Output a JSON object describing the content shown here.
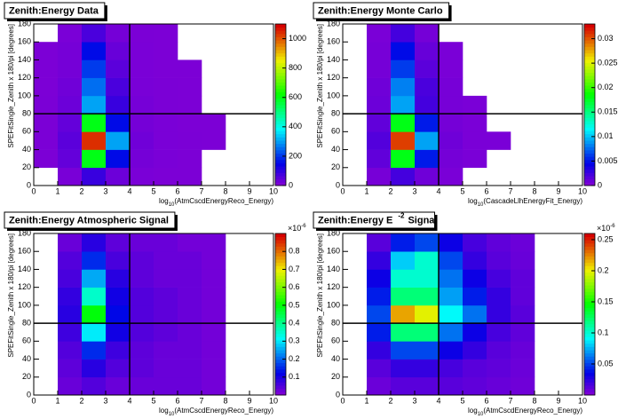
{
  "chart_data": [
    {
      "type": "heatmap",
      "title": "Zenith:Energy Data",
      "x_label": "log",
      "x_label_sub": "10",
      "x_label_end": "(AtmCscdEnergyReco_Energy)",
      "y_label": "SPEFitSingle_Zenith x 180/pi [degrees]",
      "xlim": [
        0,
        10
      ],
      "xticks": [
        0,
        1,
        2,
        3,
        4,
        5,
        6,
        7,
        8,
        9,
        10
      ],
      "ylim": [
        0,
        180
      ],
      "yticks": [
        0,
        20,
        40,
        60,
        80,
        100,
        120,
        140,
        160,
        180
      ],
      "zlim": [
        0,
        1100
      ],
      "zticks": [
        0,
        200,
        400,
        600,
        800,
        1000
      ],
      "cut_x": 4,
      "cut_y": 80,
      "x_bins": [
        0,
        1,
        2,
        3,
        4,
        5,
        6,
        7,
        8,
        9,
        10
      ],
      "y_bins": [
        0,
        20,
        40,
        60,
        80,
        100,
        120,
        140,
        160,
        180
      ],
      "z": [
        [
          0,
          5,
          80,
          20,
          3,
          1,
          1,
          0,
          0,
          0
        ],
        [
          1,
          30,
          600,
          150,
          10,
          3,
          1,
          0,
          0,
          0
        ],
        [
          2,
          40,
          1050,
          300,
          15,
          4,
          2,
          1,
          0,
          0
        ],
        [
          2,
          30,
          600,
          150,
          10,
          3,
          1,
          1,
          0,
          0
        ],
        [
          2,
          20,
          300,
          80,
          8,
          2,
          1,
          0,
          0,
          0
        ],
        [
          1,
          15,
          250,
          60,
          5,
          2,
          1,
          0,
          0,
          0
        ],
        [
          1,
          10,
          200,
          40,
          4,
          1,
          1,
          0,
          0,
          0
        ],
        [
          1,
          8,
          150,
          25,
          3,
          1,
          0,
          0,
          0,
          0
        ],
        [
          0,
          3,
          60,
          10,
          2,
          1,
          0,
          0,
          0,
          0
        ]
      ]
    },
    {
      "type": "heatmap",
      "title": "Zenith:Energy Monte Carlo",
      "x_label": "log",
      "x_label_sub": "10",
      "x_label_end": "(CascadeLlhEnergyFit_Energy)",
      "y_label": "SPEFitSingle_Zenith x 180/pi [degrees]",
      "xlim": [
        0,
        10
      ],
      "xticks": [
        0,
        1,
        2,
        3,
        4,
        5,
        6,
        7,
        8,
        9,
        10
      ],
      "ylim": [
        0,
        180
      ],
      "yticks": [
        0,
        20,
        40,
        60,
        80,
        100,
        120,
        140,
        160,
        180
      ],
      "zlim": [
        0,
        0.033
      ],
      "zticks": [
        0,
        0.005,
        0.01,
        0.015,
        0.02,
        0.025,
        0.03
      ],
      "cut_x": 4,
      "cut_y": 80,
      "x_bins": [
        0,
        1,
        2,
        3,
        4,
        5,
        6,
        7,
        8,
        9,
        10
      ],
      "y_bins": [
        0,
        20,
        40,
        60,
        80,
        100,
        120,
        140,
        160,
        180
      ],
      "z": [
        [
          0,
          0.0002,
          0.002,
          0.0005,
          0.0001,
          0,
          0,
          0,
          0,
          0
        ],
        [
          0,
          0.001,
          0.018,
          0.005,
          0.0003,
          0.0001,
          0,
          0,
          0,
          0
        ],
        [
          0,
          0.0015,
          0.031,
          0.009,
          0.0005,
          0.0001,
          0.0001,
          0,
          0,
          0
        ],
        [
          0,
          0.001,
          0.018,
          0.005,
          0.0003,
          0.0001,
          0,
          0,
          0,
          0
        ],
        [
          0,
          0.0006,
          0.009,
          0.002,
          0.0002,
          0.0001,
          0,
          0,
          0,
          0
        ],
        [
          0,
          0.0005,
          0.008,
          0.0018,
          0.0002,
          0,
          0,
          0,
          0,
          0
        ],
        [
          0,
          0.0003,
          0.006,
          0.0012,
          0.0001,
          0,
          0,
          0,
          0,
          0
        ],
        [
          0,
          0.0002,
          0.0045,
          0.0008,
          0.0001,
          0,
          0,
          0,
          0,
          0
        ],
        [
          0,
          0.0001,
          0.002,
          0.0003,
          0,
          0,
          0,
          0,
          0,
          0
        ]
      ]
    },
    {
      "type": "heatmap",
      "title": "Zenith:Energy Atmospheric Signal",
      "x_label": "log",
      "x_label_sub": "10",
      "x_label_end": "(AtmCscdEnergyReco_Energy)",
      "y_label": "SPEFitSingle_Zenith x 180/pi [degrees]",
      "xlim": [
        0,
        10
      ],
      "xticks": [
        0,
        1,
        2,
        3,
        4,
        5,
        6,
        7,
        8,
        9,
        10
      ],
      "ylim": [
        0,
        180
      ],
      "yticks": [
        0,
        20,
        40,
        60,
        80,
        100,
        120,
        140,
        160,
        180
      ],
      "zlim": [
        0,
        0.9
      ],
      "zticks": [
        0.1,
        0.2,
        0.3,
        0.4,
        0.5,
        0.6,
        0.7,
        0.8
      ],
      "z_multiplier": "×10",
      "z_multiplier_sup": "-6",
      "cut_x": 4,
      "cut_y": 80,
      "x_bins": [
        0,
        1,
        2,
        3,
        4,
        5,
        6,
        7,
        8,
        9,
        10
      ],
      "y_bins": [
        0,
        20,
        40,
        60,
        80,
        100,
        120,
        140,
        160,
        180
      ],
      "z": [
        [
          0,
          0.02,
          0.04,
          0.02,
          0.02,
          0.02,
          0.02,
          0.01,
          0,
          0
        ],
        [
          0,
          0.03,
          0.08,
          0.04,
          0.03,
          0.02,
          0.02,
          0.01,
          0,
          0
        ],
        [
          0,
          0.04,
          0.15,
          0.06,
          0.03,
          0.02,
          0.02,
          0.01,
          0,
          0
        ],
        [
          0,
          0.06,
          0.3,
          0.1,
          0.04,
          0.03,
          0.02,
          0.01,
          0,
          0
        ],
        [
          0,
          0.08,
          0.5,
          0.12,
          0.04,
          0.03,
          0.02,
          0.01,
          0,
          0
        ],
        [
          0,
          0.07,
          0.35,
          0.1,
          0.04,
          0.03,
          0.02,
          0.01,
          0,
          0
        ],
        [
          0,
          0.05,
          0.25,
          0.08,
          0.03,
          0.02,
          0.02,
          0.01,
          0,
          0
        ],
        [
          0,
          0.04,
          0.15,
          0.05,
          0.03,
          0.02,
          0.02,
          0.01,
          0,
          0
        ],
        [
          0,
          0.02,
          0.08,
          0.03,
          0.02,
          0.02,
          0.01,
          0.01,
          0,
          0
        ]
      ]
    },
    {
      "type": "heatmap",
      "title": "Zenith:Energy E",
      "title_sup": "-2",
      "title_end": "Signal",
      "x_label": "log",
      "x_label_sub": "10",
      "x_label_end": "(AtmCscdEnergyReco_Energy)",
      "y_label": "SPEFitSingle_Zenith x 180/pi [degrees]",
      "xlim": [
        0,
        10
      ],
      "xticks": [
        0,
        1,
        2,
        3,
        4,
        5,
        6,
        7,
        8,
        9,
        10
      ],
      "ylim": [
        0,
        180
      ],
      "yticks": [
        0,
        20,
        40,
        60,
        80,
        100,
        120,
        140,
        160,
        180
      ],
      "zlim": [
        0,
        0.26
      ],
      "zticks": [
        0.05,
        0.1,
        0.15,
        0.2,
        0.25
      ],
      "z_multiplier": "×10",
      "z_multiplier_sup": "-6",
      "cut_x": 4,
      "cut_y": 80,
      "x_bins": [
        0,
        1,
        2,
        3,
        4,
        5,
        6,
        7,
        8,
        9,
        10
      ],
      "y_bins": [
        0,
        20,
        40,
        60,
        80,
        100,
        120,
        140,
        160,
        180
      ],
      "z": [
        [
          0,
          0.005,
          0.01,
          0.01,
          0.01,
          0.008,
          0.006,
          0.004,
          0,
          0
        ],
        [
          0,
          0.01,
          0.02,
          0.02,
          0.015,
          0.01,
          0.008,
          0.005,
          0,
          0
        ],
        [
          0,
          0.02,
          0.05,
          0.05,
          0.03,
          0.02,
          0.01,
          0.006,
          0,
          0
        ],
        [
          0,
          0.04,
          0.12,
          0.12,
          0.06,
          0.03,
          0.015,
          0.008,
          0,
          0
        ],
        [
          0,
          0.05,
          0.22,
          0.2,
          0.09,
          0.06,
          0.02,
          0.01,
          0,
          0
        ],
        [
          0,
          0.04,
          0.12,
          0.12,
          0.07,
          0.04,
          0.02,
          0.008,
          0,
          0
        ],
        [
          0,
          0.03,
          0.1,
          0.1,
          0.06,
          0.03,
          0.015,
          0.008,
          0,
          0
        ],
        [
          0,
          0.02,
          0.08,
          0.1,
          0.05,
          0.02,
          0.01,
          0.006,
          0,
          0
        ],
        [
          0,
          0.01,
          0.04,
          0.05,
          0.03,
          0.015,
          0.008,
          0.005,
          0,
          0
        ]
      ]
    }
  ]
}
